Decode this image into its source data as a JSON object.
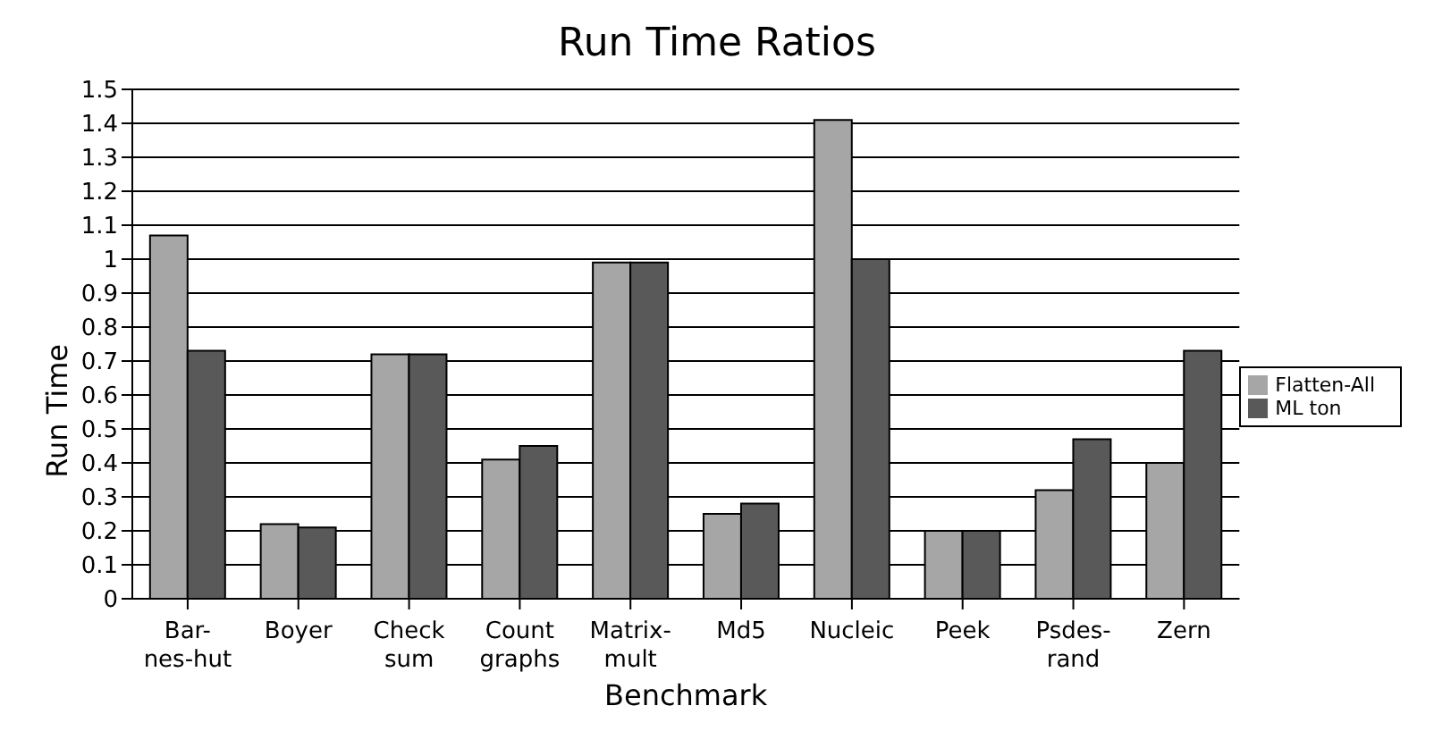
{
  "chart_data": {
    "type": "bar",
    "title": "Run Time Ratios",
    "xlabel": "Benchmark",
    "ylabel": "Run Time",
    "categories": [
      "Bar-\nnes-hut",
      "Boyer",
      "Check\nsum",
      "Count\ngraphs",
      "Matrix-\nmult",
      "Md5",
      "Nucleic",
      "Peek",
      "Psdes-\nrand",
      "Zern"
    ],
    "series": [
      {
        "name": "Flatten-All",
        "color": "#a6a6a6",
        "values": [
          1.07,
          0.22,
          0.72,
          0.41,
          0.99,
          0.25,
          1.41,
          0.2,
          0.32,
          0.4
        ]
      },
      {
        "name": "ML ton",
        "color": "#595959",
        "values": [
          0.73,
          0.21,
          0.72,
          0.45,
          0.99,
          0.28,
          1.0,
          0.2,
          0.47,
          0.73
        ]
      }
    ],
    "ylim": [
      0,
      1.5
    ],
    "yticks": [
      0,
      0.1,
      0.2,
      0.3,
      0.4,
      0.5,
      0.6,
      0.7,
      0.8,
      0.9,
      1,
      1.1,
      1.2,
      1.3,
      1.4,
      1.5
    ],
    "grid": "y",
    "legend": "right"
  }
}
